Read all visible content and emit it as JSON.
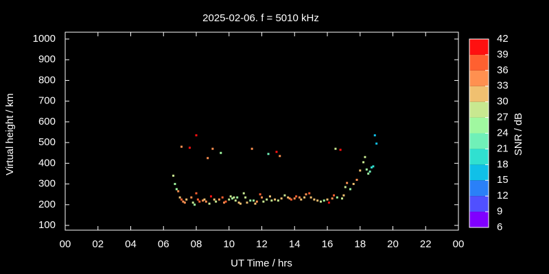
{
  "chart_data": {
    "type": "scatter",
    "title": "2025-02-06. f = 5010 kHz",
    "x_label": "UT Time / hrs",
    "y_label": "Virtual height / km",
    "xlim": [
      0,
      24
    ],
    "xticks": [
      {
        "value": 0,
        "label": "00"
      },
      {
        "value": 2,
        "label": "02"
      },
      {
        "value": 4,
        "label": "04"
      },
      {
        "value": 6,
        "label": "06"
      },
      {
        "value": 8,
        "label": "08"
      },
      10,
      12,
      14,
      16,
      18,
      20,
      22,
      {
        "value": 24,
        "label": "00"
      }
    ],
    "ylim": [
      77,
      1033
    ],
    "yticks": [
      100,
      200,
      300,
      400,
      500,
      600,
      700,
      800,
      900,
      1000
    ],
    "series": [
      {
        "name": "SNR",
        "x": [
          6.6,
          6.7,
          6.8,
          6.9,
          7.0,
          7.1,
          7.2,
          7.3,
          7.4,
          7.1,
          7.6,
          7.7,
          7.8,
          7.9,
          8.0,
          8.0,
          8.1,
          8.2,
          8.4,
          8.5,
          8.6,
          8.7,
          8.8,
          8.9,
          9.0,
          9.1,
          9.2,
          9.4,
          9.5,
          9.6,
          9.7,
          9.8,
          10.0,
          10.1,
          10.2,
          10.3,
          10.4,
          10.5,
          10.6,
          10.7,
          10.9,
          11.0,
          11.1,
          11.3,
          11.4,
          11.5,
          11.6,
          11.7,
          11.9,
          12.0,
          12.1,
          12.3,
          12.4,
          12.5,
          12.6,
          12.8,
          12.9,
          13.0,
          13.1,
          13.2,
          13.4,
          13.6,
          13.7,
          13.8,
          14.0,
          14.1,
          14.3,
          14.4,
          14.6,
          14.7,
          14.9,
          15.0,
          15.2,
          15.4,
          15.6,
          15.8,
          16.0,
          16.1,
          16.3,
          16.4,
          16.5,
          16.6,
          16.8,
          16.9,
          17.0,
          17.1,
          17.2,
          17.4,
          17.6,
          17.8,
          18.0,
          18.2,
          18.3,
          18.4,
          18.5,
          18.6,
          18.7,
          18.8,
          18.9,
          19.0
        ],
        "values": [
          340,
          300,
          275,
          265,
          235,
          225,
          215,
          210,
          225,
          480,
          475,
          235,
          210,
          200,
          255,
          535,
          225,
          215,
          220,
          225,
          215,
          425,
          205,
          240,
          470,
          225,
          215,
          225,
          450,
          235,
          210,
          215,
          225,
          240,
          230,
          235,
          220,
          235,
          210,
          205,
          255,
          235,
          210,
          220,
          470,
          220,
          205,
          215,
          250,
          235,
          215,
          225,
          445,
          240,
          220,
          225,
          455,
          220,
          435,
          230,
          245,
          235,
          230,
          225,
          230,
          240,
          235,
          225,
          235,
          250,
          255,
          235,
          225,
          220,
          215,
          220,
          225,
          210,
          230,
          245,
          470,
          235,
          465,
          230,
          245,
          285,
          305,
          275,
          300,
          320,
          365,
          405,
          430,
          370,
          350,
          360,
          380,
          385,
          535,
          495
        ],
        "snr": [
          28,
          24,
          25,
          33,
          30,
          36,
          33,
          33,
          30,
          33,
          39,
          33,
          27,
          24,
          36,
          39,
          36,
          36,
          33,
          30,
          33,
          33,
          27,
          39,
          33,
          30,
          27,
          33,
          24,
          36,
          33,
          36,
          27,
          27,
          24,
          27,
          27,
          24,
          30,
          30,
          27,
          27,
          30,
          24,
          33,
          24,
          30,
          33,
          36,
          33,
          27,
          27,
          21,
          30,
          27,
          30,
          39,
          27,
          33,
          30,
          27,
          30,
          33,
          36,
          33,
          36,
          33,
          30,
          30,
          33,
          36,
          30,
          30,
          30,
          27,
          24,
          30,
          39,
          33,
          36,
          27,
          24,
          39,
          27,
          30,
          27,
          33,
          24,
          30,
          33,
          30,
          27,
          27,
          24,
          24,
          21,
          18,
          18,
          15,
          15
        ]
      }
    ],
    "colorbar": {
      "label": "SNR / dB",
      "lim": [
        6,
        42
      ],
      "ticks": [
        6,
        9,
        12,
        15,
        18,
        21,
        24,
        27,
        30,
        33,
        36,
        39,
        42
      ],
      "colors": [
        "#8000ff",
        "#5050ff",
        "#2a80f8",
        "#10c0e8",
        "#30e0d0",
        "#70f0b8",
        "#a0f8a0",
        "#c8e890",
        "#f0c070",
        "#ff9050",
        "#ff6030",
        "#ff1010"
      ]
    }
  }
}
